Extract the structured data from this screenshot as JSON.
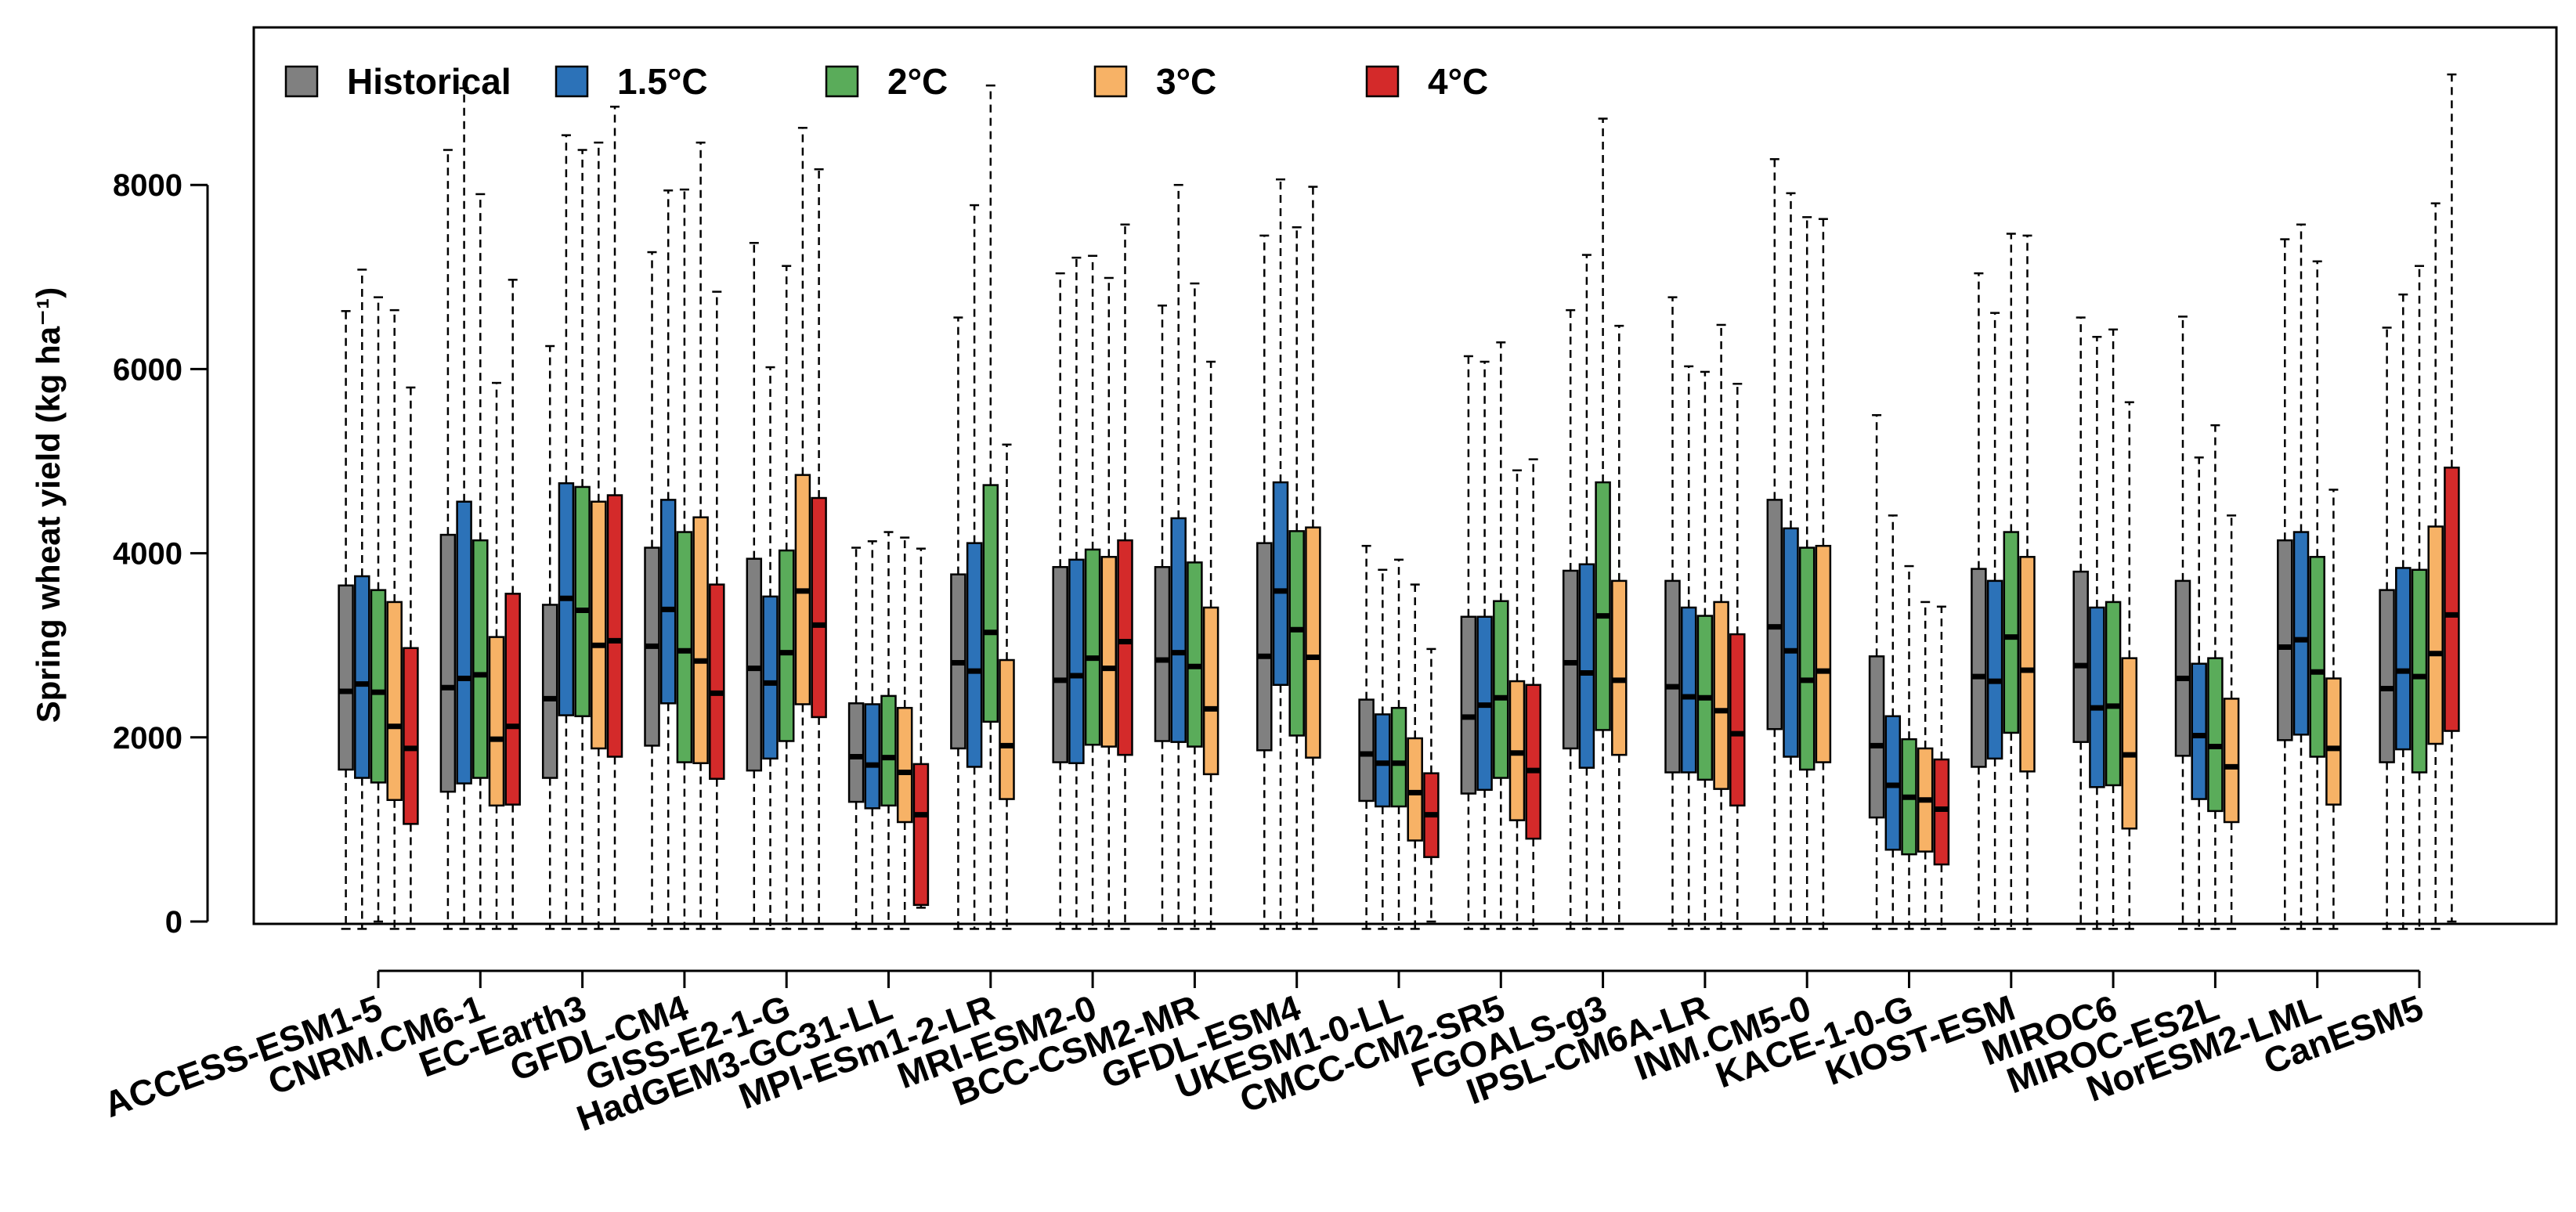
{
  "chart_data": {
    "type": "boxplot",
    "title": "",
    "xlabel": "",
    "ylabel": "Spring wheat yield (kg ha⁻¹)",
    "ylim": [
      -200,
      9350
    ],
    "yticks": [
      0,
      2000,
      4000,
      6000,
      8000
    ],
    "grid": false,
    "legend_position": "top-left",
    "series": [
      {
        "name": "Historical",
        "color": "#808080"
      },
      {
        "name": "1.5°C",
        "color": "#2c72b8"
      },
      {
        "name": "2°C",
        "color": "#5aac5a"
      },
      {
        "name": "3°C",
        "color": "#f7b266"
      },
      {
        "name": "4°C",
        "color": "#d42a2a"
      }
    ],
    "categories": [
      {
        "name": "ACCESS-ESM1-5",
        "boxes": [
          [
            -80,
            1650,
            2500,
            3650,
            6630
          ],
          [
            -80,
            1560,
            2580,
            3750,
            7080
          ],
          [
            0,
            1510,
            2490,
            3600,
            6780
          ],
          [
            -80,
            1320,
            2120,
            3470,
            6640
          ],
          [
            -80,
            1060,
            1880,
            2970,
            5800
          ]
        ]
      },
      {
        "name": "CNRM.CM6-1",
        "boxes": [
          [
            -80,
            1410,
            2540,
            4200,
            8380
          ],
          [
            -80,
            1500,
            2640,
            4560,
            9050
          ],
          [
            -80,
            1560,
            2680,
            4140,
            7900
          ],
          [
            -80,
            1260,
            1980,
            3090,
            5850
          ],
          [
            -80,
            1270,
            2120,
            3560,
            6970
          ]
        ]
      },
      {
        "name": "EC-Earth3",
        "boxes": [
          [
            -80,
            1560,
            2420,
            3440,
            6250
          ],
          [
            -80,
            2240,
            3510,
            4760,
            8540
          ],
          [
            -80,
            2230,
            3380,
            4720,
            8380
          ],
          [
            -80,
            1880,
            3000,
            4560,
            8460
          ],
          [
            -80,
            1790,
            3050,
            4630,
            8850
          ]
        ]
      },
      {
        "name": "GFDL-CM4",
        "boxes": [
          [
            -80,
            1910,
            2990,
            4060,
            7270
          ],
          [
            -80,
            2370,
            3390,
            4580,
            7940
          ],
          [
            -80,
            1730,
            2940,
            4230,
            7950
          ],
          [
            -80,
            1720,
            2830,
            4390,
            8460
          ],
          [
            -80,
            1550,
            2480,
            3660,
            6840
          ]
        ]
      },
      {
        "name": "GISS-E2-1-G",
        "boxes": [
          [
            -80,
            1640,
            2750,
            3940,
            7370
          ],
          [
            -80,
            1770,
            2590,
            3530,
            6020
          ],
          [
            -80,
            1960,
            2920,
            4030,
            7120
          ],
          [
            -80,
            2360,
            3590,
            4850,
            8620
          ],
          [
            -80,
            2220,
            3220,
            4600,
            8170
          ]
        ]
      },
      {
        "name": "HadGEM3-GC31-LL",
        "boxes": [
          [
            -80,
            1300,
            1790,
            2370,
            4060
          ],
          [
            -80,
            1230,
            1700,
            2360,
            4130
          ],
          [
            -80,
            1260,
            1780,
            2450,
            4230
          ],
          [
            -80,
            1080,
            1620,
            2320,
            4170
          ],
          [
            150,
            180,
            1160,
            1710,
            4050
          ]
        ]
      },
      {
        "name": "MPI-ESm1-2-LR",
        "boxes": [
          [
            -80,
            1880,
            2810,
            3770,
            6560
          ],
          [
            -80,
            1680,
            2720,
            4110,
            7780
          ],
          [
            -80,
            2170,
            3140,
            4740,
            9080
          ],
          [
            -80,
            1330,
            1910,
            2840,
            5180
          ]
        ]
      },
      {
        "name": "MRI-ESM2-0",
        "boxes": [
          [
            -80,
            1730,
            2620,
            3850,
            7040
          ],
          [
            -80,
            1720,
            2670,
            3930,
            7210
          ],
          [
            -80,
            1920,
            2860,
            4040,
            7230
          ],
          [
            -80,
            1900,
            2750,
            3960,
            6990
          ],
          [
            -80,
            1810,
            3040,
            4140,
            7570
          ]
        ]
      },
      {
        "name": "BCC-CSM2-MR",
        "boxes": [
          [
            -80,
            1960,
            2840,
            3850,
            6690
          ],
          [
            -80,
            1950,
            2920,
            4380,
            8000
          ],
          [
            -80,
            1900,
            2770,
            3900,
            6930
          ],
          [
            -80,
            1600,
            2310,
            3410,
            6080
          ]
        ]
      },
      {
        "name": "GFDL-ESM4",
        "boxes": [
          [
            -80,
            1860,
            2880,
            4110,
            7450
          ],
          [
            -80,
            2570,
            3590,
            4770,
            8060
          ],
          [
            -80,
            2020,
            3170,
            4240,
            7540
          ],
          [
            -80,
            1780,
            2870,
            4280,
            7980
          ]
        ]
      },
      {
        "name": "UKESM1-0-LL",
        "boxes": [
          [
            -80,
            1310,
            1820,
            2410,
            4080
          ],
          [
            -80,
            1250,
            1720,
            2250,
            3820
          ],
          [
            -80,
            1250,
            1720,
            2320,
            3930
          ],
          [
            -80,
            880,
            1400,
            1990,
            3660
          ],
          [
            0,
            700,
            1160,
            1610,
            2960
          ]
        ]
      },
      {
        "name": "CMCC-CM2-SR5",
        "boxes": [
          [
            -80,
            1390,
            2220,
            3310,
            6140
          ],
          [
            -80,
            1430,
            2350,
            3310,
            6080
          ],
          [
            -80,
            1560,
            2430,
            3480,
            6290
          ],
          [
            -80,
            1100,
            1830,
            2610,
            4900
          ],
          [
            -80,
            900,
            1640,
            2570,
            5020
          ]
        ]
      },
      {
        "name": "FGOALS-g3",
        "boxes": [
          [
            -80,
            1880,
            2810,
            3810,
            6640
          ],
          [
            -80,
            1670,
            2700,
            3880,
            7240
          ],
          [
            -80,
            2080,
            3320,
            4770,
            8720
          ],
          [
            -80,
            1810,
            2620,
            3700,
            6470
          ]
        ]
      },
      {
        "name": "IPSL-CM6A-LR",
        "boxes": [
          [
            -80,
            1620,
            2550,
            3700,
            6780
          ],
          [
            -80,
            1620,
            2440,
            3410,
            6030
          ],
          [
            -80,
            1540,
            2430,
            3320,
            5970
          ],
          [
            -80,
            1440,
            2290,
            3470,
            6480
          ],
          [
            -80,
            1260,
            2040,
            3120,
            5840
          ]
        ]
      },
      {
        "name": "INM.CM5-0",
        "boxes": [
          [
            -80,
            2090,
            3200,
            4580,
            8280
          ],
          [
            -80,
            1790,
            2940,
            4270,
            7910
          ],
          [
            -80,
            1650,
            2620,
            4060,
            7650
          ],
          [
            -80,
            1730,
            2720,
            4080,
            7630
          ]
        ]
      },
      {
        "name": "KACE-1-0-G",
        "boxes": [
          [
            -80,
            1130,
            1910,
            2880,
            5500
          ],
          [
            -80,
            780,
            1480,
            2230,
            4410
          ],
          [
            -80,
            730,
            1350,
            1980,
            3860
          ],
          [
            -80,
            760,
            1320,
            1880,
            3470
          ],
          [
            -80,
            620,
            1220,
            1760,
            3420
          ]
        ]
      },
      {
        "name": "KIOST-ESM",
        "boxes": [
          [
            -80,
            1680,
            2660,
            3830,
            7040
          ],
          [
            -80,
            1770,
            2610,
            3700,
            6610
          ],
          [
            -80,
            2050,
            3090,
            4230,
            7470
          ],
          [
            -80,
            1630,
            2730,
            3960,
            7450
          ]
        ]
      },
      {
        "name": "MIROC6",
        "boxes": [
          [
            -80,
            1950,
            2780,
            3800,
            6560
          ],
          [
            -80,
            1460,
            2320,
            3410,
            6350
          ],
          [
            -80,
            1480,
            2340,
            3470,
            6430
          ],
          [
            -80,
            1010,
            1810,
            2860,
            5640
          ]
        ]
      },
      {
        "name": "MIROC-ES2L",
        "boxes": [
          [
            -80,
            1800,
            2640,
            3700,
            6570
          ],
          [
            -80,
            1330,
            2020,
            2800,
            5040
          ],
          [
            -80,
            1200,
            1900,
            2860,
            5390
          ],
          [
            -80,
            1080,
            1680,
            2420,
            4410
          ]
        ]
      },
      {
        "name": "NorESM2-LML",
        "boxes": [
          [
            -80,
            1970,
            2980,
            4140,
            7410
          ],
          [
            -80,
            2030,
            3060,
            4230,
            7570
          ],
          [
            -80,
            1790,
            2710,
            3960,
            7170
          ],
          [
            -80,
            1270,
            1880,
            2640,
            4690
          ]
        ]
      },
      {
        "name": "CanESM5",
        "boxes": [
          [
            -80,
            1730,
            2530,
            3600,
            6450
          ],
          [
            -80,
            1870,
            2720,
            3840,
            6810
          ],
          [
            -80,
            1620,
            2660,
            3820,
            7120
          ],
          [
            -80,
            1930,
            2910,
            4290,
            7800
          ],
          [
            0,
            2070,
            3330,
            4930,
            9200
          ]
        ]
      }
    ]
  }
}
